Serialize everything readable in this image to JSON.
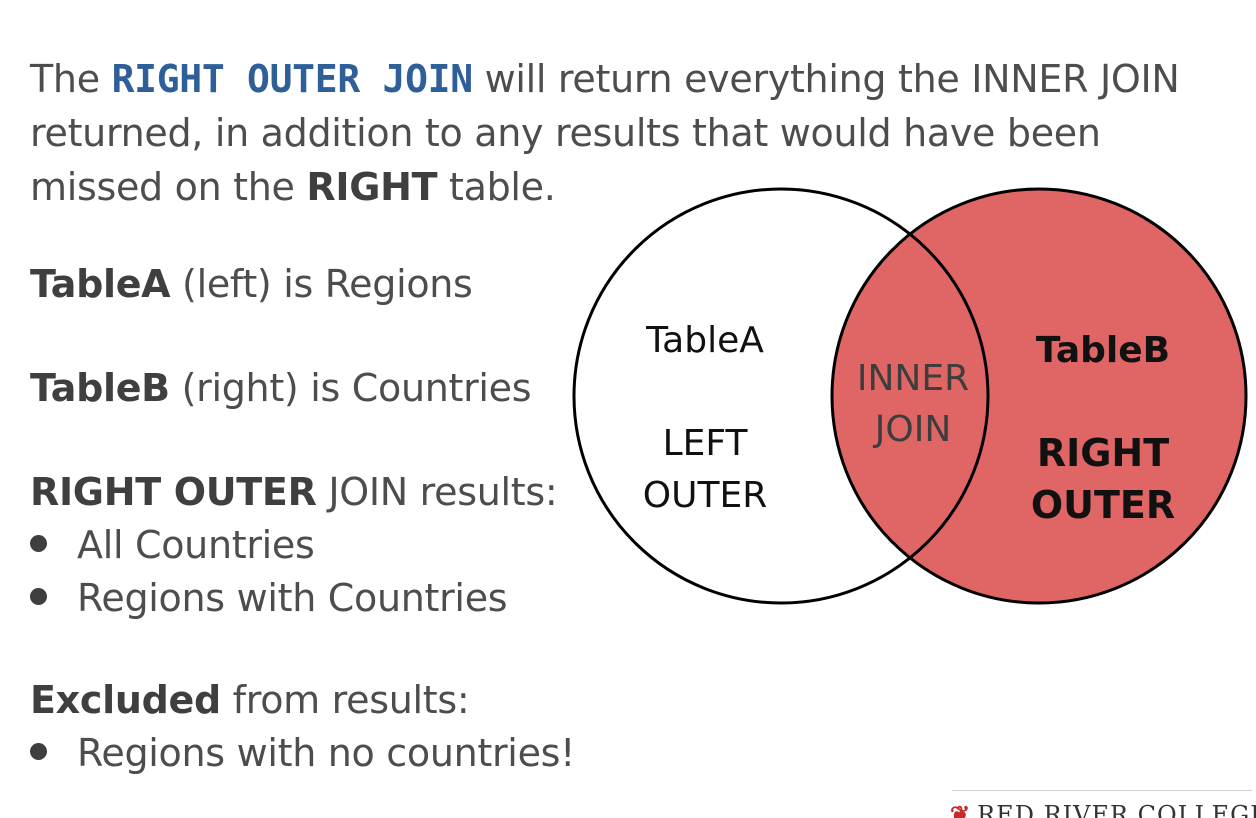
{
  "intro": {
    "p1": "The ",
    "kw": "RIGHT OUTER JOIN",
    "p2": " will return everything the INNER JOIN returned, in addition to any results that would have been missed on the ",
    "bold": "RIGHT",
    "p3": " table."
  },
  "table_a": {
    "bold": "TableA",
    "rest": " (left) is Regions"
  },
  "table_b": {
    "bold": "TableB",
    "rest": " (right) is Countries"
  },
  "results": {
    "bold": "RIGHT OUTER",
    "rest": " JOIN results:",
    "items": [
      "All Countries",
      "Regions with Countries"
    ]
  },
  "excluded": {
    "bold": "Excluded",
    "rest": " from results:",
    "items": [
      "Regions with no countries!"
    ]
  },
  "venn": {
    "left_title": "TableA",
    "left_line1": "LEFT",
    "left_line2": "OUTER",
    "inner_line1": "INNER",
    "inner_line2": "JOIN",
    "right_title": "TableB",
    "right_line1": "RIGHT",
    "right_line2": "OUTER",
    "fill_color": "#e06666",
    "stroke_color": "#000000"
  },
  "footer": {
    "logo_text": "RED RIVER COLLEGE"
  }
}
